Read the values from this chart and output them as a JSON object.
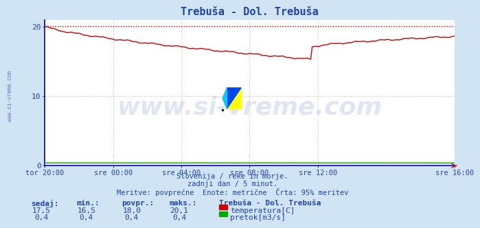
{
  "title": "Trebuša - Dol. Trebuša",
  "bg_color": "#d0e4f4",
  "plot_bg_color": "#ffffff",
  "grid_color": "#e8b0b0",
  "title_color": "#2244aa",
  "axis_label_color": "#2244aa",
  "text_color": "#2244aa",
  "watermark_color": "#3355aa",
  "xlim_start": 0,
  "xlim_end": 288,
  "ylim": [
    0,
    21
  ],
  "yticks": [
    0,
    10,
    20
  ],
  "xtick_labels": [
    "tor 20:00",
    "sre 00:00",
    "sre 04:00",
    "sre 08:00",
    "sre 12:00",
    "sre 16:00"
  ],
  "xtick_positions": [
    0,
    48,
    96,
    144,
    192,
    288
  ],
  "temp_color": "#cc0000",
  "pretok_color": "#00aa00",
  "max_line_color": "#cc0000",
  "max_value": 20.1,
  "subtitle1": "Slovenija / reke in morje.",
  "subtitle2": "zadnji dan / 5 minut.",
  "subtitle3": "Meritve: povprečne  Enote: metrične  Črta: 95% meritev",
  "footer_station": "Trebuša - Dol. Trebuša",
  "footer_labels": [
    "sedaj:",
    "min.:",
    "povpr.:",
    "maks.:"
  ],
  "footer_temp_vals": [
    "17,5",
    "16,5",
    "18,0",
    "20,1"
  ],
  "footer_pretok_vals": [
    "0,4",
    "0,4",
    "0,4",
    "0,4"
  ],
  "footer_temp_label": "temperatura[C]",
  "footer_pretok_label": "pretok[m3/s]",
  "watermark_text": "www.si-vreme.com",
  "watermark_fontsize": 26,
  "left_label": "www.si-vreme.com",
  "spine_color": "#0000cc",
  "logo_yellow": "#ffff00",
  "logo_blue": "#0044ee",
  "logo_cyan": "#00ccff"
}
